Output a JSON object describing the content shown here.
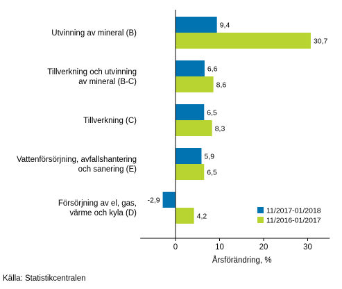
{
  "chart_data": {
    "type": "bar",
    "orientation": "horizontal",
    "categories": [
      [
        "Utvinning av mineral (B)"
      ],
      [
        "Tillverkning och utvinning",
        "av mineral (B-C)"
      ],
      [
        "Tillverkning (C)"
      ],
      [
        "Vattenförsörjning, avfallshantering",
        "och sanering (E)"
      ],
      [
        "Försörjning av el, gas,",
        "värme och kyla (D)"
      ]
    ],
    "series": [
      {
        "name": "11/2017-01/2018",
        "color": "#0073b0",
        "values": [
          9.4,
          6.6,
          6.5,
          5.9,
          -2.9
        ],
        "labels": [
          "9,4",
          "6,6",
          "6,5",
          "5,9",
          "-2,9"
        ]
      },
      {
        "name": "11/2016-01/2017",
        "color": "#b8d431",
        "values": [
          30.7,
          8.6,
          8.3,
          6.5,
          4.2
        ],
        "labels": [
          "30,7",
          "8,6",
          "8,3",
          "6,5",
          "4,2"
        ]
      }
    ],
    "xlim": [
      -8,
      35
    ],
    "xticks": [
      0,
      10,
      20,
      30
    ],
    "xtick_labels": [
      "0",
      "10",
      "20",
      "30"
    ],
    "xlabel": "Årsförändring, %",
    "grid": false,
    "legend_position": "bottom-right"
  },
  "source": "Källa: Statistikcentralen"
}
